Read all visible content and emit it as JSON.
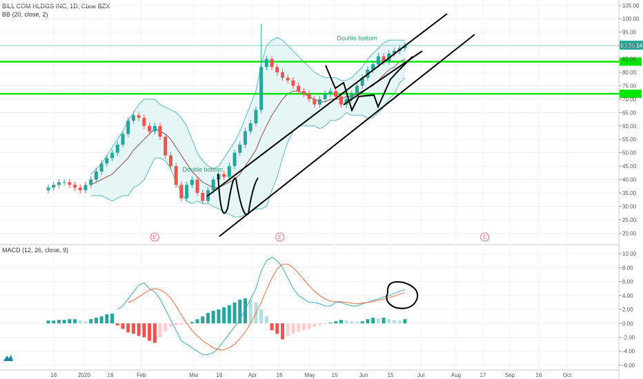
{
  "header": {
    "symbol_line": "BILL COM HLDGS INC, 1D, Cboe BZX",
    "indicator_line": "BB (20, close, 2)",
    "macd_line": "MACD (12, 26, close, 9)"
  },
  "price_axis": {
    "ticks": [
      "105.00",
      "100.00",
      "95.00",
      "90.00",
      "85.00",
      "80.00",
      "75.00",
      "70.00",
      "65.00",
      "60.00",
      "55.00",
      "50.00",
      "45.00",
      "40.00",
      "35.00",
      "30.00",
      "25.00",
      "20.00"
    ],
    "last_price_label": "03:26:14",
    "ylim": [
      17,
      107
    ]
  },
  "macd_axis": {
    "ticks": [
      "10.00",
      "8.00",
      "6.00",
      "4.00",
      "2.00",
      "0.00",
      "-2.00",
      "-4.00",
      "-6.00"
    ],
    "ylim": [
      -6.5,
      11
    ]
  },
  "time_axis": {
    "labels": [
      "16",
      "2020",
      "16",
      "Feb",
      "Mar",
      "16",
      "Apr",
      "16",
      "May",
      "15",
      "Jun",
      "15",
      "Jul",
      "Aug",
      "17",
      "Sep",
      "16",
      "Oct"
    ],
    "xlim": [
      0,
      204
    ]
  },
  "earnings_markers": [
    {
      "label": "E",
      "x": 40
    },
    {
      "label": "E",
      "x": 87
    },
    {
      "label": "E",
      "x": 164
    }
  ],
  "annotations": [
    {
      "text": "Double bottom",
      "x": 58,
      "y": 43
    },
    {
      "text": "Double bottom",
      "x": 116,
      "y": 92
    }
  ],
  "chart_data": {
    "type": "candlestick",
    "price": {
      "x": [
        0,
        2,
        4,
        6,
        8,
        10,
        12,
        14,
        16,
        18,
        20,
        22,
        24,
        26,
        28,
        30,
        32,
        34,
        36,
        38,
        40,
        42,
        44,
        46,
        48,
        50,
        52,
        54,
        56,
        58,
        60,
        62,
        64,
        66,
        68,
        70,
        72,
        74,
        76,
        78,
        80,
        82,
        84,
        86,
        88,
        90,
        92,
        94,
        96,
        98,
        100,
        102,
        104,
        106,
        108,
        110,
        112,
        114,
        116,
        118,
        120,
        122,
        124,
        126,
        128,
        130,
        132,
        134
      ],
      "close": [
        37,
        38,
        39,
        39,
        38,
        37,
        36,
        38,
        40,
        43,
        46,
        48,
        50,
        53,
        57,
        62,
        64,
        63,
        60,
        58,
        60,
        56,
        49,
        45,
        38,
        33,
        38,
        40,
        35,
        32,
        36,
        40,
        42,
        41,
        45,
        50,
        53,
        58,
        61,
        66,
        82,
        85,
        82,
        80,
        78,
        77,
        75,
        73,
        72,
        70,
        68,
        70,
        72,
        73,
        71,
        68,
        70,
        72,
        75,
        78,
        81,
        83,
        86,
        84,
        87,
        88,
        89,
        90
      ],
      "open": [
        36,
        37,
        38,
        39,
        39,
        38,
        37,
        36,
        38,
        40,
        43,
        46,
        48,
        50,
        53,
        57,
        62,
        64,
        63,
        60,
        58,
        60,
        56,
        49,
        45,
        38,
        33,
        38,
        40,
        35,
        32,
        36,
        40,
        42,
        41,
        45,
        50,
        53,
        58,
        61,
        66,
        82,
        85,
        82,
        80,
        78,
        77,
        75,
        73,
        72,
        70,
        68,
        70,
        72,
        73,
        71,
        68,
        70,
        72,
        75,
        78,
        81,
        83,
        86,
        84,
        87,
        88,
        89
      ],
      "bb_mid": [
        null,
        null,
        null,
        null,
        null,
        null,
        null,
        null,
        38,
        39,
        40,
        41,
        42,
        44,
        46,
        48,
        51,
        53,
        55,
        57,
        59,
        58,
        57,
        55,
        52,
        49,
        46,
        43,
        41,
        39,
        38,
        37,
        37,
        38,
        39,
        40,
        42,
        45,
        48,
        51,
        56,
        60,
        64,
        67,
        70,
        72,
        73,
        73,
        72,
        71,
        70,
        69,
        69,
        70,
        70,
        70,
        71,
        71,
        72,
        73,
        74,
        75,
        77,
        79,
        81,
        82,
        84,
        85
      ],
      "bb_upper": [
        null,
        null,
        null,
        null,
        null,
        null,
        null,
        null,
        42,
        44,
        46,
        49,
        52,
        55,
        58,
        62,
        65,
        68,
        70,
        70,
        70,
        68,
        67,
        66,
        65,
        63,
        60,
        55,
        50,
        47,
        45,
        44,
        45,
        48,
        51,
        54,
        58,
        63,
        68,
        73,
        83,
        90,
        92,
        93,
        92,
        90,
        88,
        86,
        84,
        82,
        80,
        79,
        78,
        78,
        78,
        77,
        77,
        78,
        80,
        82,
        85,
        87,
        89,
        91,
        92,
        92,
        92,
        92
      ],
      "bb_lower": [
        null,
        null,
        null,
        null,
        null,
        null,
        null,
        null,
        34,
        34,
        34,
        33,
        32,
        33,
        34,
        34,
        37,
        38,
        40,
        44,
        48,
        48,
        47,
        44,
        39,
        35,
        32,
        31,
        32,
        31,
        31,
        30,
        29,
        28,
        27,
        26,
        26,
        27,
        28,
        29,
        29,
        30,
        36,
        41,
        48,
        54,
        58,
        60,
        60,
        60,
        60,
        59,
        60,
        62,
        62,
        63,
        65,
        64,
        64,
        64,
        63,
        63,
        65,
        67,
        70,
        72,
        76,
        78
      ],
      "resistance_level": 84,
      "support_level": 72
    },
    "macd": {
      "x": [
        0,
        2,
        4,
        6,
        8,
        10,
        12,
        14,
        16,
        18,
        20,
        22,
        24,
        26,
        28,
        30,
        32,
        34,
        36,
        38,
        40,
        42,
        44,
        46,
        48,
        50,
        52,
        54,
        56,
        58,
        60,
        62,
        64,
        66,
        68,
        70,
        72,
        74,
        76,
        78,
        80,
        82,
        84,
        86,
        88,
        90,
        92,
        94,
        96,
        98,
        100,
        102,
        104,
        106,
        108,
        110,
        112,
        114,
        116,
        118,
        120,
        122,
        124,
        126,
        128,
        130,
        132,
        134
      ],
      "macd": [
        null,
        null,
        null,
        null,
        null,
        null,
        null,
        null,
        null,
        null,
        null,
        null,
        null,
        2.0,
        2.5,
        3.5,
        4.5,
        5.5,
        5.8,
        5.0,
        4.5,
        3.5,
        2.0,
        0.5,
        -1.0,
        -2.5,
        -3.0,
        -3.5,
        -4.0,
        -4.5,
        -4.5,
        -4.2,
        -3.5,
        -2.5,
        -1.5,
        -0.5,
        0.5,
        2.0,
        3.5,
        5.0,
        7.5,
        9.0,
        9.5,
        9.0,
        8.0,
        6.5,
        5.0,
        4.0,
        3.5,
        3.0,
        3.0,
        2.8,
        2.5,
        2.5,
        3.0,
        3.0,
        2.7,
        2.5,
        2.5,
        2.8,
        3.0,
        3.3,
        3.5,
        3.8,
        4.0,
        4.3,
        4.6,
        4.8
      ],
      "signal": [
        null,
        null,
        null,
        null,
        null,
        null,
        null,
        null,
        null,
        null,
        null,
        null,
        null,
        null,
        null,
        3.0,
        3.3,
        3.8,
        4.3,
        4.8,
        5.0,
        4.8,
        4.4,
        3.6,
        2.5,
        1.2,
        0.0,
        -1.0,
        -1.8,
        -2.5,
        -3.0,
        -3.5,
        -3.8,
        -3.8,
        -3.5,
        -3.0,
        -2.2,
        -1.2,
        0.0,
        1.5,
        3.0,
        4.8,
        6.5,
        7.8,
        8.5,
        8.5,
        8.0,
        7.2,
        6.3,
        5.4,
        4.6,
        4.0,
        3.5,
        3.2,
        3.1,
        3.1,
        3.0,
        2.9,
        2.8,
        2.9,
        3.0,
        3.1,
        3.3,
        3.5,
        3.7,
        3.9,
        4.2,
        4.4
      ],
      "histogram": [
        0.4,
        0.4,
        0.5,
        0.5,
        0.6,
        0.6,
        0.4,
        0.3,
        0.6,
        0.8,
        1.0,
        1.3,
        1.4,
        -0.3,
        -0.8,
        -1.3,
        -1.5,
        -1.8,
        -2.0,
        -2.5,
        -2.8,
        -2.0,
        -1.2,
        -0.5,
        -0.3,
        -0.2,
        -0.1,
        0.2,
        0.6,
        1.0,
        1.5,
        1.8,
        2.0,
        2.3,
        2.6,
        3.0,
        3.4,
        3.6,
        3.4,
        3.0,
        2.0,
        1.0,
        -1.0,
        -1.5,
        -2.3,
        -1.8,
        -1.5,
        -1.2,
        -1.0,
        -0.8,
        -0.5,
        -0.3,
        -0.1,
        0.1,
        0.3,
        0.5,
        0.4,
        0.3,
        0.2,
        0.3,
        0.6,
        0.8,
        0.7,
        0.8,
        0.6,
        0.5,
        0.4,
        0.6
      ]
    }
  },
  "colors": {
    "up": "#26a69a",
    "down": "#ef5350",
    "bb_band": "#5bb8c2",
    "bb_fill": "#e6f5f5",
    "basis": "#8c4a4a",
    "macd_line": "#3aa6c4",
    "signal_line": "#ef6c40",
    "level_line": "#00e600",
    "drawing": "#000000"
  }
}
